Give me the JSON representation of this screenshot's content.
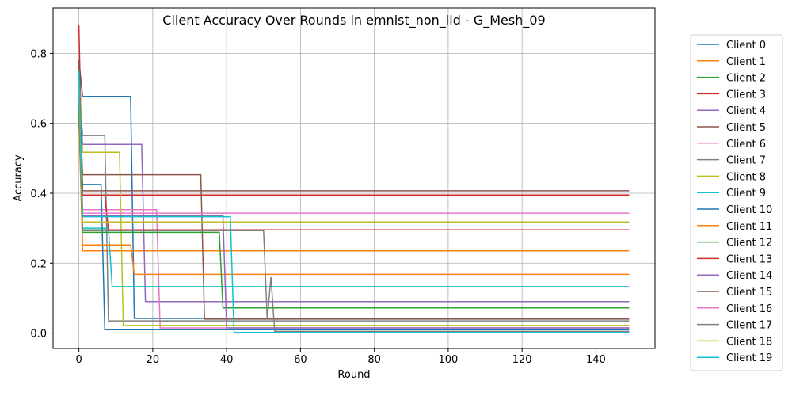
{
  "chart_data": {
    "type": "line",
    "title": "Client Accuracy Over Rounds in emnist_non_iid - G_Mesh_09",
    "xlabel": "Round",
    "ylabel": "Accuracy",
    "xlim": [
      -7,
      156
    ],
    "ylim": [
      -0.044,
      0.93
    ],
    "xticks": [
      0,
      20,
      40,
      60,
      80,
      100,
      120,
      140
    ],
    "yticks": [
      0.0,
      0.2,
      0.4,
      0.6,
      0.8
    ],
    "grid": true,
    "legend_position": "outside-right",
    "series": [
      {
        "name": "Client 0",
        "color": "#1f77b4",
        "x": [
          0,
          1,
          14,
          15,
          149
        ],
        "y": [
          0.78,
          0.677,
          0.677,
          0.042,
          0.042
        ]
      },
      {
        "name": "Client 1",
        "color": "#ff7f0e",
        "x": [
          0,
          1,
          149
        ],
        "y": [
          0.63,
          0.235,
          0.235
        ]
      },
      {
        "name": "Client 2",
        "color": "#2ca02c",
        "x": [
          0,
          1,
          149
        ],
        "y": [
          0.66,
          0.295,
          0.295
        ]
      },
      {
        "name": "Client 3",
        "color": "#d62728",
        "x": [
          0,
          1,
          149
        ],
        "y": [
          0.88,
          0.395,
          0.395
        ]
      },
      {
        "name": "Client 4",
        "color": "#9467bd",
        "x": [
          0,
          1,
          17,
          18,
          149
        ],
        "y": [
          0.75,
          0.54,
          0.54,
          0.09,
          0.09
        ]
      },
      {
        "name": "Client 5",
        "color": "#8c564b",
        "x": [
          0,
          1,
          33,
          34,
          149
        ],
        "y": [
          0.7,
          0.453,
          0.453,
          0.04,
          0.04
        ]
      },
      {
        "name": "Client 6",
        "color": "#e377c2",
        "x": [
          0,
          1,
          21,
          22,
          149
        ],
        "y": [
          0.72,
          0.353,
          0.353,
          0.015,
          0.015
        ]
      },
      {
        "name": "Client 7",
        "color": "#7f7f7f",
        "x": [
          0,
          1,
          7,
          8,
          149
        ],
        "y": [
          0.7,
          0.565,
          0.565,
          0.035,
          0.035
        ]
      },
      {
        "name": "Client 8",
        "color": "#bcbd22",
        "x": [
          0,
          1,
          11,
          12,
          149
        ],
        "y": [
          0.76,
          0.517,
          0.517,
          0.022,
          0.022
        ]
      },
      {
        "name": "Client 9",
        "color": "#17becf",
        "x": [
          0,
          1,
          8,
          9,
          149
        ],
        "y": [
          0.72,
          0.3,
          0.3,
          0.133,
          0.133
        ]
      },
      {
        "name": "Client 10",
        "color": "#1f77b4",
        "x": [
          0,
          1,
          6,
          7,
          149
        ],
        "y": [
          0.6,
          0.425,
          0.425,
          0.01,
          0.01
        ]
      },
      {
        "name": "Client 11",
        "color": "#ff7f0e",
        "x": [
          0,
          1,
          14,
          15,
          149
        ],
        "y": [
          0.62,
          0.252,
          0.252,
          0.168,
          0.168
        ]
      },
      {
        "name": "Client 12",
        "color": "#2ca02c",
        "x": [
          0,
          1,
          38,
          39,
          149
        ],
        "y": [
          0.64,
          0.288,
          0.288,
          0.072,
          0.072
        ]
      },
      {
        "name": "Client 13",
        "color": "#d62728",
        "x": [
          0,
          1,
          7,
          8,
          149
        ],
        "y": [
          0.7,
          0.395,
          0.395,
          0.295,
          0.295
        ]
      },
      {
        "name": "Client 14",
        "color": "#9467bd",
        "x": [
          0,
          1,
          39,
          40,
          149
        ],
        "y": [
          0.7,
          0.335,
          0.335,
          0.015,
          0.015
        ]
      },
      {
        "name": "Client 15",
        "color": "#8c564b",
        "x": [
          0,
          1,
          149
        ],
        "y": [
          0.78,
          0.407,
          0.407
        ]
      },
      {
        "name": "Client 16",
        "color": "#e377c2",
        "x": [
          0,
          1,
          149
        ],
        "y": [
          0.7,
          0.343,
          0.343
        ]
      },
      {
        "name": "Client 17",
        "color": "#7f7f7f",
        "x": [
          0,
          1,
          50,
          51,
          52,
          53,
          149
        ],
        "y": [
          0.68,
          0.293,
          0.293,
          0.04,
          0.16,
          0.005,
          0.005
        ]
      },
      {
        "name": "Client 18",
        "color": "#bcbd22",
        "x": [
          0,
          1,
          149
        ],
        "y": [
          0.72,
          0.318,
          0.318
        ]
      },
      {
        "name": "Client 19",
        "color": "#17becf",
        "x": [
          0,
          1,
          41,
          42,
          149
        ],
        "y": [
          0.75,
          0.333,
          0.333,
          0.002,
          0.002
        ]
      }
    ]
  }
}
